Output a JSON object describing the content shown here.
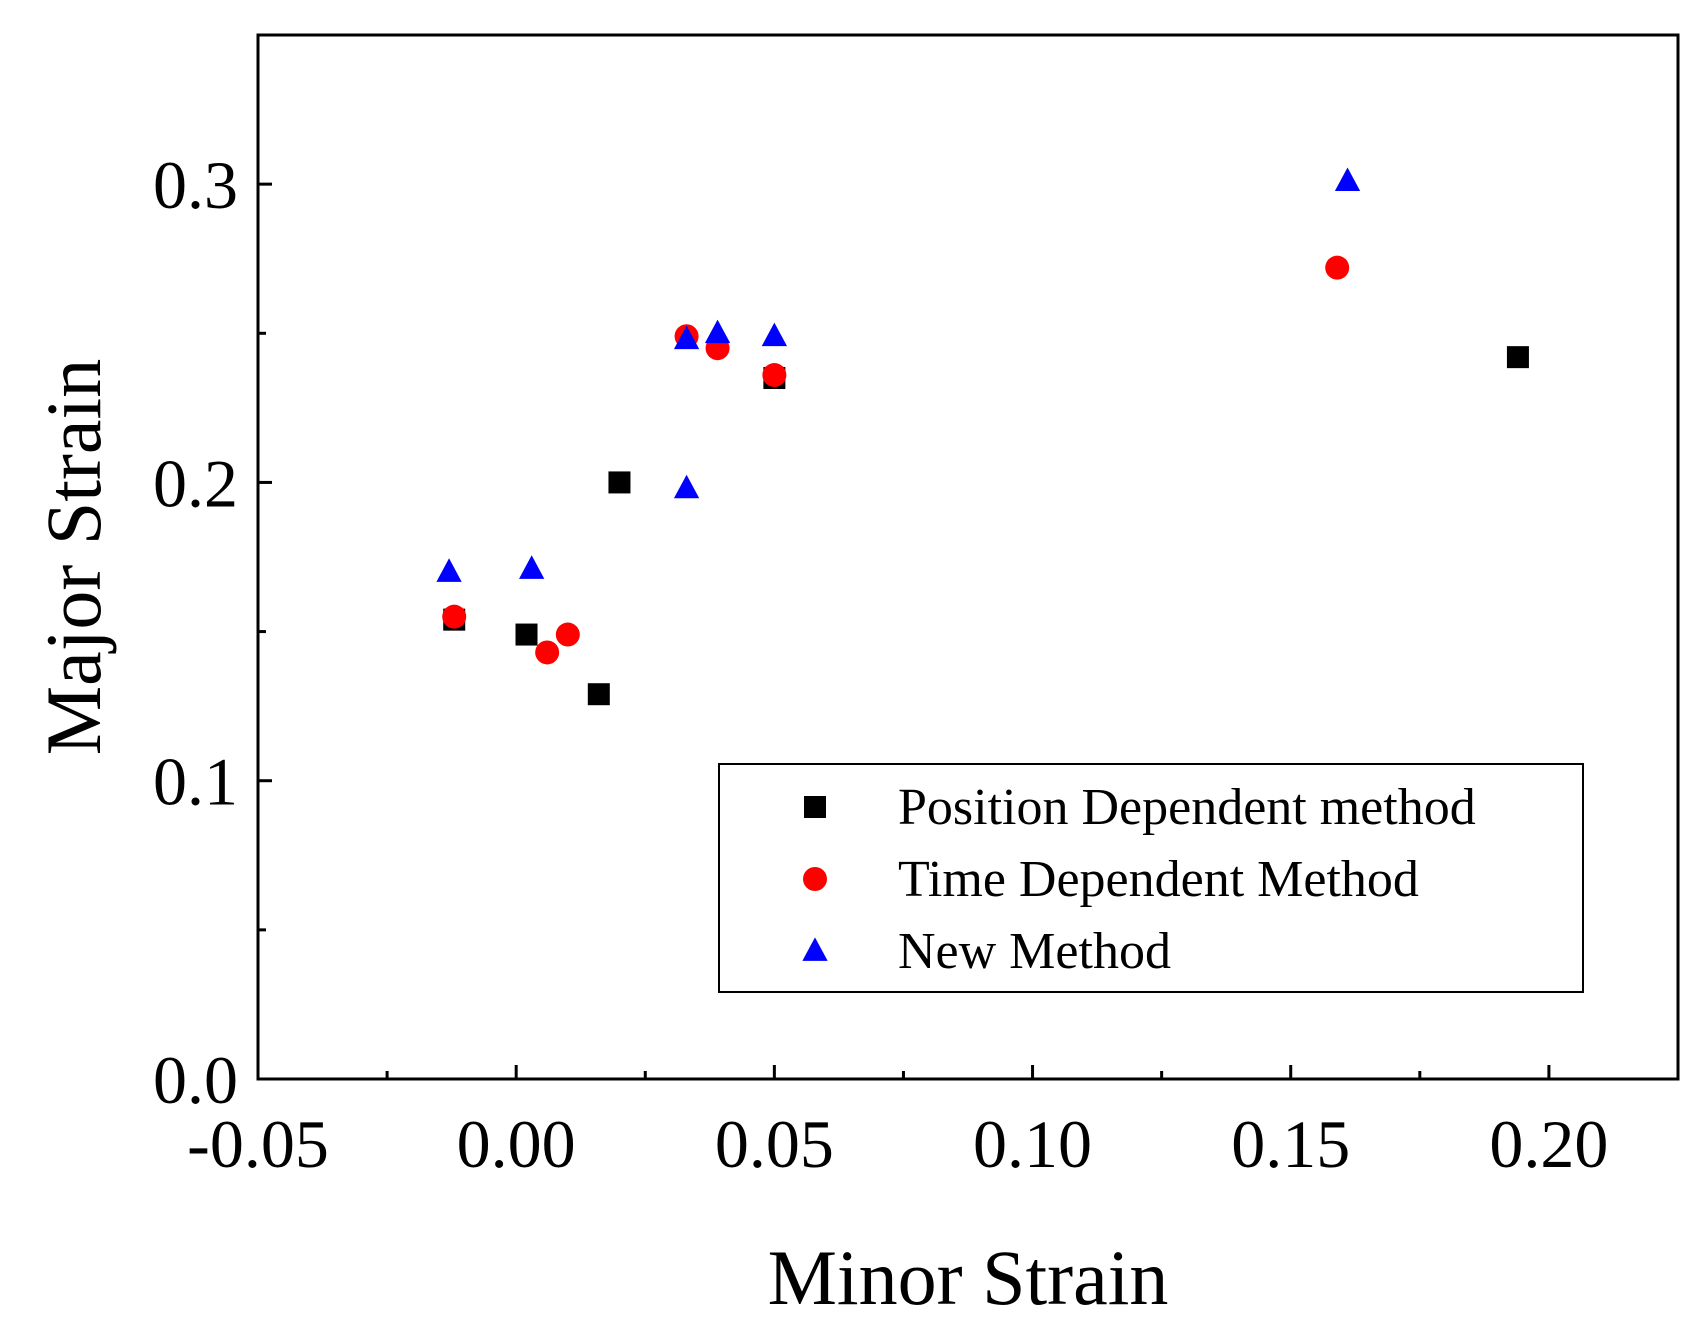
{
  "chart_data": {
    "type": "scatter",
    "title": "",
    "xlabel": "Minor Strain",
    "ylabel": "Major Strain",
    "xlim": [
      -0.05,
      0.225
    ],
    "ylim": [
      0.0,
      0.35
    ],
    "x_ticks": [
      {
        "value": -0.05,
        "label": "-0.05"
      },
      {
        "value": 0.0,
        "label": "0.00"
      },
      {
        "value": 0.05,
        "label": "0.05"
      },
      {
        "value": 0.1,
        "label": "0.10"
      },
      {
        "value": 0.15,
        "label": "0.15"
      },
      {
        "value": 0.2,
        "label": "0.20"
      }
    ],
    "x_minor_ticks": [
      -0.025,
      0.025,
      0.075,
      0.125,
      0.175
    ],
    "y_ticks": [
      {
        "value": 0.0,
        "label": "0.0"
      },
      {
        "value": 0.1,
        "label": "0.1"
      },
      {
        "value": 0.2,
        "label": "0.2"
      },
      {
        "value": 0.3,
        "label": "0.3"
      }
    ],
    "y_minor_ticks": [
      0.05,
      0.15,
      0.25
    ],
    "grid": false,
    "legend_position": "bottom-right",
    "series": [
      {
        "name": "Position Dependent method",
        "marker": "square",
        "color": "#000000",
        "points": [
          {
            "x": -0.012,
            "y": 0.154
          },
          {
            "x": 0.002,
            "y": 0.149
          },
          {
            "x": 0.016,
            "y": 0.129
          },
          {
            "x": 0.02,
            "y": 0.2
          },
          {
            "x": 0.05,
            "y": 0.235
          },
          {
            "x": 0.194,
            "y": 0.242
          }
        ]
      },
      {
        "name": "Time Dependent Method",
        "marker": "circle",
        "color": "#ff0000",
        "points": [
          {
            "x": -0.012,
            "y": 0.155
          },
          {
            "x": 0.006,
            "y": 0.143
          },
          {
            "x": 0.01,
            "y": 0.149
          },
          {
            "x": 0.033,
            "y": 0.249
          },
          {
            "x": 0.039,
            "y": 0.245
          },
          {
            "x": 0.05,
            "y": 0.236
          },
          {
            "x": 0.159,
            "y": 0.272
          }
        ]
      },
      {
        "name": "New Method",
        "marker": "triangle",
        "color": "#0000ff",
        "points": [
          {
            "x": -0.013,
            "y": 0.17
          },
          {
            "x": 0.003,
            "y": 0.171
          },
          {
            "x": 0.033,
            "y": 0.198
          },
          {
            "x": 0.033,
            "y": 0.248
          },
          {
            "x": 0.039,
            "y": 0.25
          },
          {
            "x": 0.05,
            "y": 0.249
          },
          {
            "x": 0.161,
            "y": 0.301
          }
        ]
      }
    ]
  }
}
